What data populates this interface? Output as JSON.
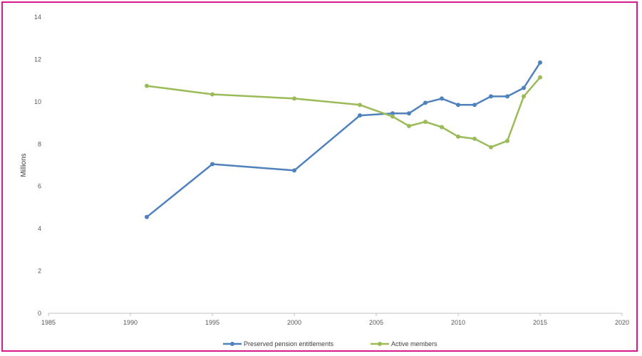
{
  "chart_data": {
    "type": "line",
    "title": "",
    "xlabel": "",
    "ylabel": "Millions",
    "xlim": [
      1985,
      2020
    ],
    "ylim": [
      0,
      14
    ],
    "x_ticks": [
      1985,
      1990,
      1995,
      2000,
      2005,
      2010,
      2015,
      2020
    ],
    "y_ticks": [
      0,
      2,
      4,
      6,
      8,
      10,
      12,
      14
    ],
    "grid": false,
    "legend_position": "bottom",
    "series": [
      {
        "name": "Preserved pension entitlements",
        "color": "#4f81bd",
        "points": [
          [
            1991,
            4.55
          ],
          [
            1995,
            7.05
          ],
          [
            2000,
            6.75
          ],
          [
            2004,
            9.35
          ],
          [
            2006,
            9.45
          ],
          [
            2007,
            9.45
          ],
          [
            2008,
            9.95
          ],
          [
            2009,
            10.15
          ],
          [
            2010,
            9.85
          ],
          [
            2011,
            9.85
          ],
          [
            2012,
            10.25
          ],
          [
            2013,
            10.25
          ],
          [
            2014,
            10.65
          ],
          [
            2015,
            11.85
          ]
        ]
      },
      {
        "name": "Active members",
        "color": "#9bbb59",
        "points": [
          [
            1991,
            10.75
          ],
          [
            1995,
            10.35
          ],
          [
            2000,
            10.15
          ],
          [
            2004,
            9.85
          ],
          [
            2006,
            9.3
          ],
          [
            2007,
            8.85
          ],
          [
            2008,
            9.05
          ],
          [
            2009,
            8.8
          ],
          [
            2010,
            8.35
          ],
          [
            2011,
            8.25
          ],
          [
            2012,
            7.85
          ],
          [
            2013,
            8.15
          ],
          [
            2014,
            10.25
          ],
          [
            2015,
            11.15
          ]
        ]
      }
    ]
  }
}
